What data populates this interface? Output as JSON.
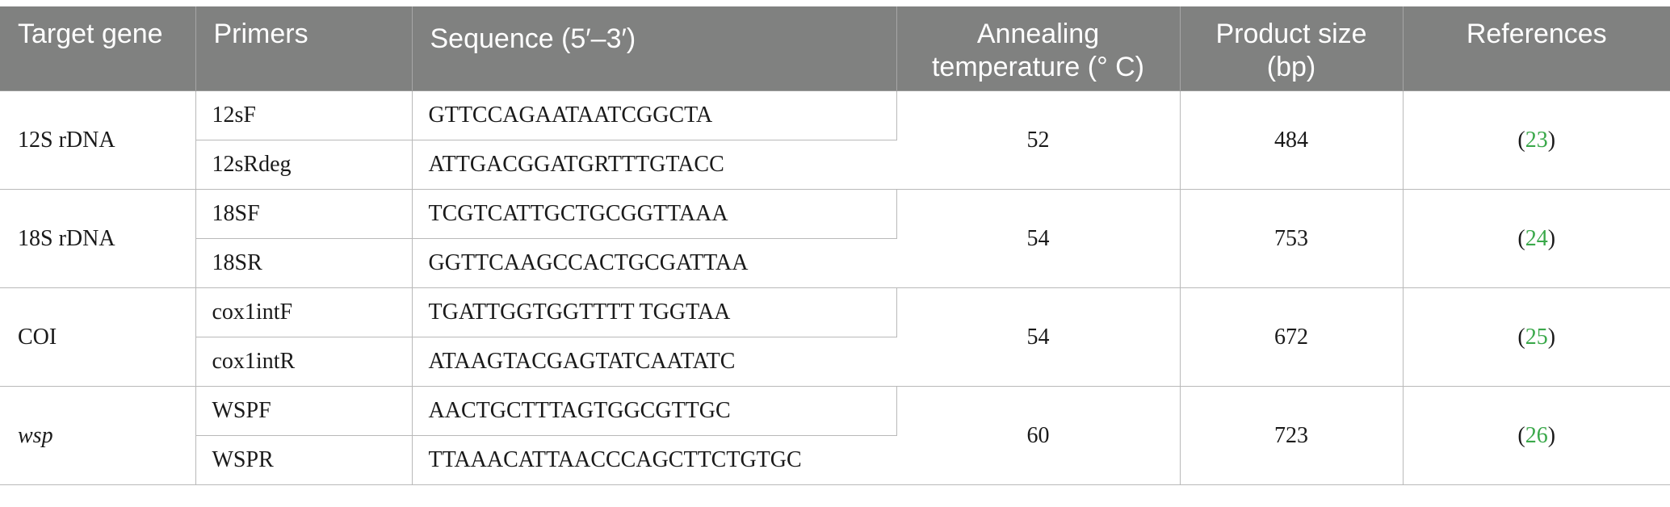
{
  "table": {
    "headers": {
      "target_gene": "Target gene",
      "primers": "Primers",
      "sequence": "Sequence (5′–3′)",
      "annealing": "Annealing temperature (° C)",
      "product_size": "Product size (bp)",
      "references": "References"
    },
    "groups": [
      {
        "gene": "12S rDNA",
        "italic": false,
        "annealing": "52",
        "product_size": "484",
        "reference": "23",
        "primers": [
          {
            "name": "12sF",
            "sequence": "GTTCCAGAATAATCGGCTA"
          },
          {
            "name": "12sRdeg",
            "sequence": "ATTGACGGATGRTTTGTACC"
          }
        ]
      },
      {
        "gene": "18S rDNA",
        "italic": false,
        "annealing": "54",
        "product_size": "753",
        "reference": "24",
        "primers": [
          {
            "name": "18SF",
            "sequence": "TCGTCATTGCTGCGGTTAAA"
          },
          {
            "name": "18SR",
            "sequence": "GGTTCAAGCCACTGCGATTAA"
          }
        ]
      },
      {
        "gene": "COI",
        "italic": false,
        "annealing": "54",
        "product_size": "672",
        "reference": "25",
        "primers": [
          {
            "name": "cox1intF",
            "sequence": "TGATTGGTGGTTTT TGGTAA"
          },
          {
            "name": "cox1intR",
            "sequence": "ATAAGTACGAGTATCAATATC"
          }
        ]
      },
      {
        "gene": "wsp",
        "italic": true,
        "annealing": "60",
        "product_size": "723",
        "reference": "26",
        "primers": [
          {
            "name": "WSPF",
            "sequence": "AACTGCTTTAGTGGCGTTGC"
          },
          {
            "name": "WSPR",
            "sequence": "TTAAACATTAACCCAGCTTCTGTGC"
          }
        ]
      }
    ],
    "colors": {
      "header_bg": "#808180",
      "header_text": "#ffffff",
      "reference_link": "#3aa84a",
      "rule": "#b9b9b9"
    }
  }
}
